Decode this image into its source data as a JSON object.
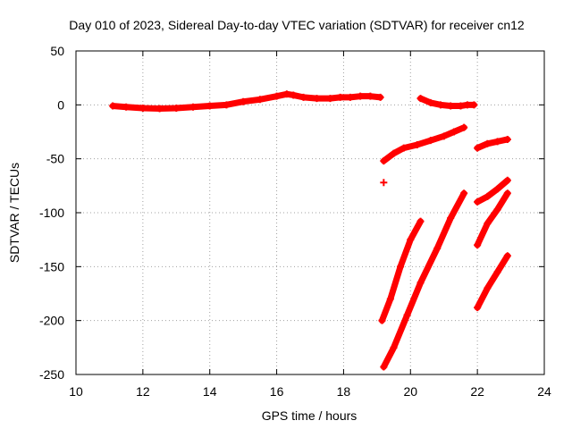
{
  "chart_data": {
    "type": "scatter",
    "title": "Day 010 of 2023, Sidereal Day-to-day VTEC variation (SDTVAR) for receiver cn12",
    "xlabel": "GPS time / hours",
    "ylabel": "SDTVAR / TECUs",
    "xlim": [
      10,
      24
    ],
    "ylim": [
      -250,
      50
    ],
    "xticks": [
      "10",
      "12",
      "14",
      "16",
      "18",
      "20",
      "22",
      "24"
    ],
    "yticks": [
      "50",
      "0",
      "-50",
      "-100",
      "-150",
      "-200",
      "-250"
    ],
    "grid": true,
    "color": "#ff0000",
    "series": [
      {
        "x": [
          11.1,
          11.5,
          12.0,
          12.5,
          13.0,
          13.5,
          14.0,
          14.5,
          15.0,
          15.5,
          16.0,
          16.3,
          16.5,
          16.8,
          17.2,
          17.6,
          17.9,
          18.2,
          18.5,
          18.8,
          19.1
        ],
        "y": [
          -1,
          -2,
          -3,
          -3.5,
          -3,
          -2,
          -1,
          0,
          3,
          5,
          8,
          10,
          9,
          7,
          6,
          6,
          7,
          7,
          8,
          8,
          7
        ]
      },
      {
        "x": [
          20.3,
          20.6,
          20.9,
          21.2,
          21.5,
          21.7,
          21.9
        ],
        "y": [
          6,
          2,
          0,
          -1,
          -1,
          0,
          0
        ]
      },
      {
        "x": [
          19.2
        ],
        "y": [
          -72
        ]
      },
      {
        "x": [
          19.2,
          19.5,
          19.8,
          20.2,
          20.6,
          21.0,
          21.3,
          21.6
        ],
        "y": [
          -52,
          -45,
          -40,
          -37,
          -33,
          -29,
          -25,
          -21
        ]
      },
      {
        "x": [
          22.0,
          22.3,
          22.6,
          22.9
        ],
        "y": [
          -40,
          -36,
          -34,
          -32
        ]
      },
      {
        "x": [
          19.15,
          19.4,
          19.7,
          20.0,
          20.3
        ],
        "y": [
          -200,
          -180,
          -150,
          -125,
          -108
        ]
      },
      {
        "x": [
          19.2,
          19.5,
          19.9,
          20.3,
          20.8,
          21.2,
          21.6
        ],
        "y": [
          -243,
          -225,
          -195,
          -165,
          -133,
          -105,
          -82
        ]
      },
      {
        "x": [
          22.0,
          22.3,
          22.6,
          22.9
        ],
        "y": [
          -90,
          -85,
          -78,
          -70
        ]
      },
      {
        "x": [
          22.0,
          22.3,
          22.6,
          22.9
        ],
        "y": [
          -130,
          -110,
          -97,
          -82
        ]
      },
      {
        "x": [
          22.0,
          22.3,
          22.6,
          22.9
        ],
        "y": [
          -188,
          -170,
          -155,
          -140
        ]
      }
    ]
  }
}
